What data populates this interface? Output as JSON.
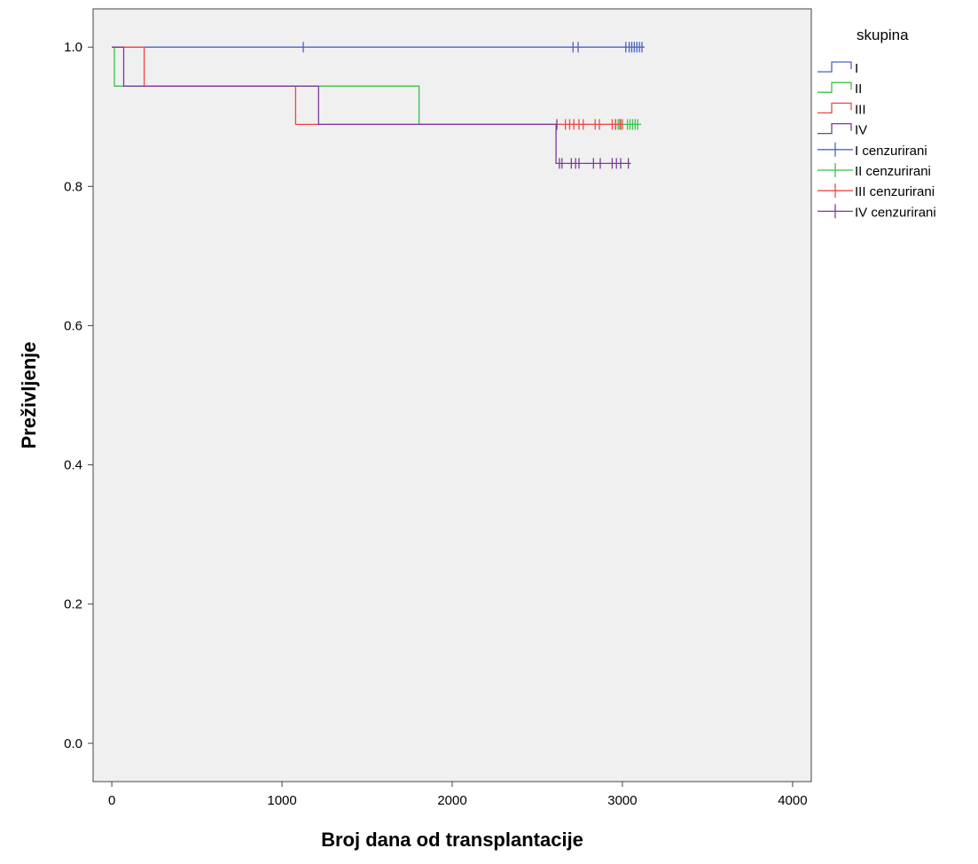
{
  "chart_data": {
    "type": "line",
    "subtype": "kaplan-meier-step",
    "xlabel": "Broj dana od transplantacije",
    "ylabel": "Preživljenje",
    "xlim": [
      -110,
      4110
    ],
    "ylim": [
      -0.055,
      1.055
    ],
    "x_ticks": [
      0,
      1000,
      2000,
      3000,
      4000
    ],
    "x_tick_labels": [
      "0",
      "1000",
      "2000",
      "3000",
      "4000"
    ],
    "y_ticks": [
      0.0,
      0.2,
      0.4,
      0.6,
      0.8,
      1.0
    ],
    "y_tick_labels": [
      "0.0",
      "0.2",
      "0.4",
      "0.6",
      "0.8",
      "1.0"
    ],
    "grid": false,
    "legend": {
      "title": "skupina",
      "position": "right",
      "entries": [
        {
          "label": "I",
          "kind": "step",
          "series": 0
        },
        {
          "label": "II",
          "kind": "step",
          "series": 1
        },
        {
          "label": "III",
          "kind": "step",
          "series": 2
        },
        {
          "label": "IV",
          "kind": "step",
          "series": 3
        },
        {
          "label": "I cenzurirani",
          "kind": "censor",
          "series": 0
        },
        {
          "label": "II cenzurirani",
          "kind": "censor",
          "series": 1
        },
        {
          "label": "III cenzurirani",
          "kind": "censor",
          "series": 2
        },
        {
          "label": "IV cenzurirani",
          "kind": "censor",
          "series": 3
        }
      ]
    },
    "series": [
      {
        "name": "I",
        "color": "#4a64c4",
        "steps": [
          [
            0,
            1.0
          ],
          [
            3130,
            1.0
          ]
        ],
        "censored": [
          [
            1125,
            1.0
          ],
          [
            2710,
            1.0
          ],
          [
            2740,
            1.0
          ],
          [
            3020,
            1.0
          ],
          [
            3040,
            1.0
          ],
          [
            3055,
            1.0
          ],
          [
            3070,
            1.0
          ],
          [
            3085,
            1.0
          ],
          [
            3100,
            1.0
          ],
          [
            3115,
            1.0
          ]
        ]
      },
      {
        "name": "II",
        "color": "#3dbf4a",
        "steps": [
          [
            0,
            1.0
          ],
          [
            15,
            1.0
          ],
          [
            15,
            0.944
          ],
          [
            1805,
            0.944
          ],
          [
            1805,
            0.889
          ],
          [
            3110,
            0.889
          ]
        ],
        "censored": [
          [
            2960,
            0.889
          ],
          [
            2975,
            0.889
          ],
          [
            2990,
            0.889
          ],
          [
            3030,
            0.889
          ],
          [
            3045,
            0.889
          ],
          [
            3060,
            0.889
          ],
          [
            3075,
            0.889
          ],
          [
            3090,
            0.889
          ]
        ]
      },
      {
        "name": "III",
        "color": "#ef4747",
        "steps": [
          [
            0,
            1.0
          ],
          [
            190,
            1.0
          ],
          [
            190,
            0.944
          ],
          [
            1080,
            0.944
          ],
          [
            1080,
            0.889
          ],
          [
            3000,
            0.889
          ]
        ],
        "censored": [
          [
            2665,
            0.889
          ],
          [
            2690,
            0.889
          ],
          [
            2715,
            0.889
          ],
          [
            2745,
            0.889
          ],
          [
            2770,
            0.889
          ],
          [
            2840,
            0.889
          ],
          [
            2865,
            0.889
          ],
          [
            2940,
            0.889
          ],
          [
            2960,
            0.889
          ],
          [
            2985,
            0.889
          ],
          [
            3000,
            0.889
          ]
        ]
      },
      {
        "name": "IV",
        "color": "#7b3b9a",
        "steps": [
          [
            0,
            1.0
          ],
          [
            70,
            1.0
          ],
          [
            70,
            0.944
          ],
          [
            1215,
            0.944
          ],
          [
            1215,
            0.889
          ],
          [
            2610,
            0.889
          ],
          [
            2610,
            0.833
          ],
          [
            3050,
            0.833
          ]
        ],
        "censored": [
          [
            2615,
            0.889
          ],
          [
            2630,
            0.833
          ],
          [
            2645,
            0.833
          ],
          [
            2700,
            0.833
          ],
          [
            2725,
            0.833
          ],
          [
            2745,
            0.833
          ],
          [
            2830,
            0.833
          ],
          [
            2870,
            0.833
          ],
          [
            2940,
            0.833
          ],
          [
            2965,
            0.833
          ],
          [
            2990,
            0.833
          ],
          [
            3035,
            0.833
          ]
        ]
      }
    ]
  }
}
